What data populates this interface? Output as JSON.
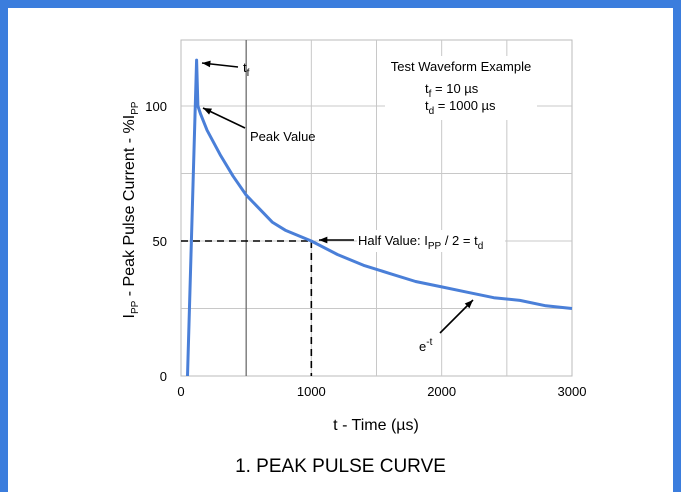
{
  "chart_data": {
    "type": "line",
    "title": "",
    "xlabel": "t - Time (µs)",
    "ylabel_parts": [
      "I",
      "PP",
      " - Peak Pulse Current - %I",
      "PP"
    ],
    "xlim": [
      0,
      3000
    ],
    "ylim": [
      0,
      120
    ],
    "x_ticks": [
      0,
      1000,
      2000,
      3000
    ],
    "y_ticks": [
      0,
      50,
      100
    ],
    "grid": true,
    "series": [
      {
        "color": "#4a7fd8",
        "x": [
          50,
          120,
          130,
          150,
          200,
          300,
          400,
          500,
          600,
          700,
          800,
          900,
          1000,
          1200,
          1400,
          1600,
          1800,
          2000,
          2200,
          2400,
          2600,
          2800,
          3000
        ],
        "y": [
          0,
          117,
          100,
          97,
          91,
          82,
          74,
          67,
          62,
          57,
          54,
          52,
          50,
          45,
          41,
          38,
          35,
          33,
          31,
          29,
          28,
          26,
          25
        ]
      }
    ],
    "reference_lines": {
      "half_x": 1000,
      "half_y": 50,
      "vertical_line_x": 500
    },
    "annotations": {
      "tf_label": [
        "t",
        "f"
      ],
      "peak_label": "Peak Value",
      "half_label": [
        "Half Value: I",
        "PP",
        " / 2 = t",
        "d"
      ],
      "exp_label": [
        "e",
        "-t"
      ],
      "box_title": "Test Waveform Example",
      "box_tf": [
        "t",
        "f",
        " = 10 µs"
      ],
      "box_td": [
        "t",
        "d",
        " = 1000 µs"
      ]
    }
  },
  "caption": "1. PEAK PULSE CURVE"
}
